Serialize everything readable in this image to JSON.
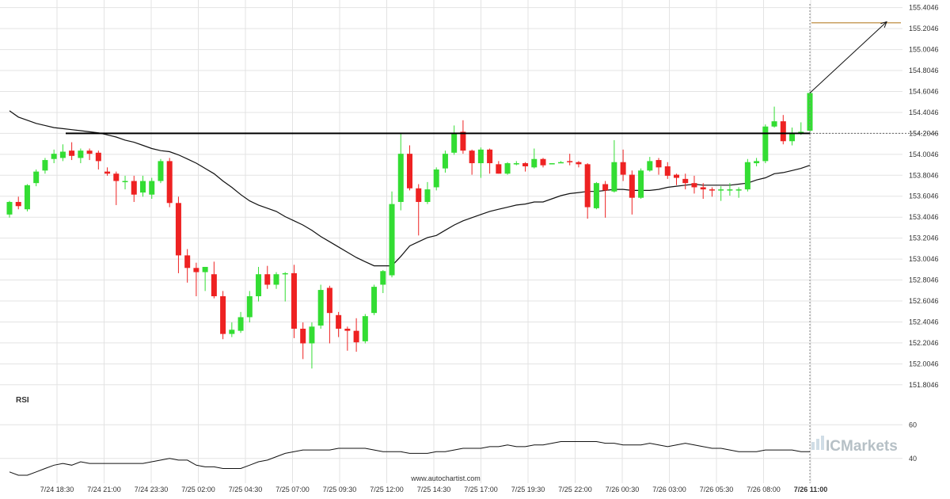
{
  "chart_data": {
    "type": "candlestick",
    "price_axis": {
      "ticks": [
        "155.4046",
        "155.2046",
        "155.0046",
        "154.8046",
        "154.6046",
        "154.4046",
        "154.2046",
        "154.0046",
        "153.8046",
        "153.6046",
        "153.4046",
        "153.2046",
        "153.0046",
        "152.8046",
        "152.6046",
        "152.4046",
        "152.2046",
        "152.0046",
        "151.8046"
      ],
      "ylim": [
        151.72,
        155.44
      ]
    },
    "time_axis": {
      "ticks": [
        "7/24 18:30",
        "7/24 21:00",
        "7/24 23:30",
        "7/25 02:00",
        "7/25 04:30",
        "7/25 07:00",
        "7/25 09:30",
        "7/25 12:00",
        "7/25 14:30",
        "7/25 17:00",
        "7/25 19:30",
        "7/25 22:00",
        "7/26 00:30",
        "7/26 03:00",
        "7/26 05:30",
        "7/26 08:00",
        "7/26 11:00"
      ],
      "current_label": "7/26 11:00"
    },
    "candles": [
      [
        153.43,
        153.55,
        153.56,
        153.4
      ],
      [
        153.55,
        153.51,
        153.6,
        153.48
      ],
      [
        153.48,
        153.71,
        153.72,
        153.46
      ],
      [
        153.73,
        153.84,
        153.86,
        153.7
      ],
      [
        153.85,
        153.95,
        153.97,
        153.82
      ],
      [
        153.96,
        154.01,
        154.05,
        153.92
      ],
      [
        153.97,
        154.03,
        154.1,
        153.94
      ],
      [
        154.04,
        153.99,
        154.12,
        153.95
      ],
      [
        153.97,
        154.04,
        154.06,
        153.92
      ],
      [
        154.04,
        154.01,
        154.06,
        153.95
      ],
      [
        154.02,
        153.94,
        154.04,
        153.86
      ],
      [
        153.84,
        153.82,
        153.88,
        153.8
      ],
      [
        153.82,
        153.75,
        153.84,
        153.52
      ],
      [
        153.74,
        153.75,
        153.8,
        153.67
      ],
      [
        153.75,
        153.62,
        153.8,
        153.55
      ],
      [
        153.64,
        153.75,
        153.8,
        153.6
      ],
      [
        153.62,
        153.75,
        153.78,
        153.58
      ],
      [
        153.75,
        153.94,
        153.96,
        153.73
      ],
      [
        153.94,
        153.54,
        153.97,
        153.5
      ],
      [
        153.54,
        153.04,
        153.6,
        152.87
      ],
      [
        153.04,
        152.92,
        153.1,
        152.78
      ],
      [
        152.92,
        152.88,
        152.97,
        152.65
      ],
      [
        152.88,
        152.93,
        152.93,
        152.7
      ],
      [
        152.86,
        152.65,
        152.98,
        152.63
      ],
      [
        152.65,
        152.29,
        152.7,
        152.24
      ],
      [
        152.29,
        152.33,
        152.4,
        152.26
      ],
      [
        152.32,
        152.45,
        152.5,
        152.3
      ],
      [
        152.45,
        152.65,
        152.7,
        152.4
      ],
      [
        152.65,
        152.86,
        152.93,
        152.6
      ],
      [
        152.86,
        152.76,
        152.94,
        152.72
      ],
      [
        152.76,
        152.86,
        152.88,
        152.72
      ],
      [
        152.86,
        152.87,
        152.88,
        152.6
      ],
      [
        152.87,
        152.34,
        152.95,
        152.25
      ],
      [
        152.34,
        152.2,
        152.4,
        152.05
      ],
      [
        152.2,
        152.36,
        152.4,
        151.96
      ],
      [
        152.37,
        152.71,
        152.76,
        152.34
      ],
      [
        152.73,
        152.49,
        152.75,
        152.2
      ],
      [
        152.47,
        152.34,
        152.5,
        152.26
      ],
      [
        152.34,
        152.32,
        152.36,
        152.13
      ],
      [
        152.32,
        152.21,
        152.44,
        152.12
      ],
      [
        152.22,
        152.46,
        152.48,
        152.2
      ],
      [
        152.49,
        152.74,
        152.76,
        152.47
      ],
      [
        152.76,
        152.89,
        152.9,
        152.68
      ],
      [
        152.85,
        153.53,
        153.65,
        152.83
      ],
      [
        153.55,
        154.01,
        154.2,
        153.47
      ],
      [
        154.01,
        153.68,
        154.09,
        153.66
      ],
      [
        153.68,
        153.55,
        153.72,
        153.23
      ],
      [
        153.55,
        153.67,
        153.74,
        153.53
      ],
      [
        153.69,
        153.86,
        153.88,
        153.66
      ],
      [
        153.87,
        154.01,
        154.04,
        153.83
      ],
      [
        154.02,
        154.2,
        154.28,
        154.0
      ],
      [
        154.22,
        154.04,
        154.33,
        154.01
      ],
      [
        154.04,
        153.92,
        154.05,
        153.81
      ],
      [
        153.92,
        154.05,
        154.07,
        153.78
      ],
      [
        154.05,
        153.92,
        154.06,
        153.82
      ],
      [
        153.91,
        153.82,
        153.94,
        153.82
      ],
      [
        153.82,
        153.92,
        153.93,
        153.81
      ],
      [
        153.92,
        153.92,
        153.94,
        153.9
      ],
      [
        153.92,
        153.89,
        153.93,
        153.84
      ],
      [
        153.88,
        153.96,
        154.06,
        153.87
      ],
      [
        153.96,
        153.9,
        153.97,
        153.88
      ],
      [
        153.91,
        153.92,
        153.92,
        153.91
      ],
      [
        153.92,
        153.93,
        153.94,
        153.92
      ],
      [
        153.94,
        153.93,
        154.01,
        153.9
      ],
      [
        153.93,
        153.91,
        153.94,
        153.88
      ],
      [
        153.91,
        153.5,
        153.92,
        153.39
      ],
      [
        153.49,
        153.73,
        153.74,
        153.48
      ],
      [
        153.72,
        153.66,
        153.75,
        153.4
      ],
      [
        153.65,
        153.93,
        154.14,
        153.64
      ],
      [
        153.93,
        153.81,
        154.05,
        153.75
      ],
      [
        153.81,
        153.59,
        153.85,
        153.43
      ],
      [
        153.59,
        153.85,
        153.87,
        153.58
      ],
      [
        153.85,
        153.94,
        153.98,
        153.84
      ],
      [
        153.95,
        153.88,
        153.97,
        153.81
      ],
      [
        153.89,
        153.8,
        153.93,
        153.77
      ],
      [
        153.81,
        153.78,
        153.82,
        153.71
      ],
      [
        153.77,
        153.73,
        153.82,
        153.67
      ],
      [
        153.73,
        153.69,
        153.8,
        153.63
      ],
      [
        153.69,
        153.67,
        153.73,
        153.58
      ],
      [
        153.67,
        153.66,
        153.69,
        153.6
      ],
      [
        153.66,
        153.67,
        153.7,
        153.56
      ],
      [
        153.67,
        153.67,
        153.73,
        153.61
      ],
      [
        153.66,
        153.67,
        153.69,
        153.59
      ],
      [
        153.67,
        153.93,
        153.96,
        153.65
      ],
      [
        153.92,
        153.94,
        153.97,
        153.89
      ],
      [
        153.94,
        154.27,
        154.29,
        153.92
      ],
      [
        154.27,
        154.32,
        154.46,
        154.26
      ],
      [
        154.32,
        154.13,
        154.38,
        154.1
      ],
      [
        154.13,
        154.2,
        154.26,
        154.09
      ],
      [
        154.21,
        154.22,
        154.31,
        154.19
      ],
      [
        154.23,
        154.59,
        154.6,
        154.21
      ]
    ],
    "ma_values": [
      154.42,
      154.36,
      154.33,
      154.3,
      154.28,
      154.26,
      154.25,
      154.24,
      154.23,
      154.22,
      154.21,
      154.19,
      154.17,
      154.14,
      154.12,
      154.09,
      154.06,
      154.04,
      154.03,
      154.0,
      153.96,
      153.92,
      153.87,
      153.82,
      153.75,
      153.69,
      153.62,
      153.56,
      153.52,
      153.49,
      153.46,
      153.41,
      153.37,
      153.33,
      153.28,
      153.22,
      153.17,
      153.12,
      153.07,
      153.02,
      152.98,
      152.94,
      152.94,
      152.94,
      153.03,
      153.13,
      153.17,
      153.21,
      153.23,
      153.28,
      153.33,
      153.37,
      153.4,
      153.43,
      153.46,
      153.48,
      153.5,
      153.52,
      153.53,
      153.55,
      153.55,
      153.58,
      153.61,
      153.63,
      153.64,
      153.65,
      153.65,
      153.66,
      153.67,
      153.67,
      153.66,
      153.66,
      153.66,
      153.67,
      153.69,
      153.7,
      153.71,
      153.72,
      153.71,
      153.71,
      153.71,
      153.71,
      153.72,
      153.73,
      153.76,
      153.78,
      153.82,
      153.83,
      153.85,
      153.87,
      153.9
    ],
    "resistance_level": 154.2046,
    "forecast": {
      "from": 154.59,
      "to": 155.27
    },
    "target_level": 155.26,
    "rsi": {
      "label": "RSI",
      "ticks": [
        "60",
        "40"
      ],
      "ylim": [
        30,
        70
      ],
      "values": [
        32,
        30,
        30,
        32,
        34,
        36,
        37,
        36,
        38,
        37,
        37,
        37,
        37,
        37,
        37,
        37,
        38,
        39,
        40,
        39,
        39,
        36,
        35,
        35,
        34,
        34,
        34,
        36,
        38,
        39,
        41,
        43,
        44,
        45,
        45,
        45,
        45,
        46,
        46,
        46,
        46,
        45,
        44,
        44,
        44,
        43,
        43,
        43,
        44,
        44,
        45,
        46,
        46,
        46,
        47,
        47,
        48,
        47,
        47,
        48,
        48,
        49,
        50,
        50,
        50,
        50,
        50,
        49,
        49,
        48,
        48,
        48,
        49,
        48,
        47,
        48,
        49,
        48,
        47,
        46,
        46,
        45,
        44,
        44,
        44,
        45,
        45,
        45,
        45,
        44,
        44
      ]
    },
    "watermark": "www.autochartist.com",
    "broker": "ICMarkets"
  }
}
